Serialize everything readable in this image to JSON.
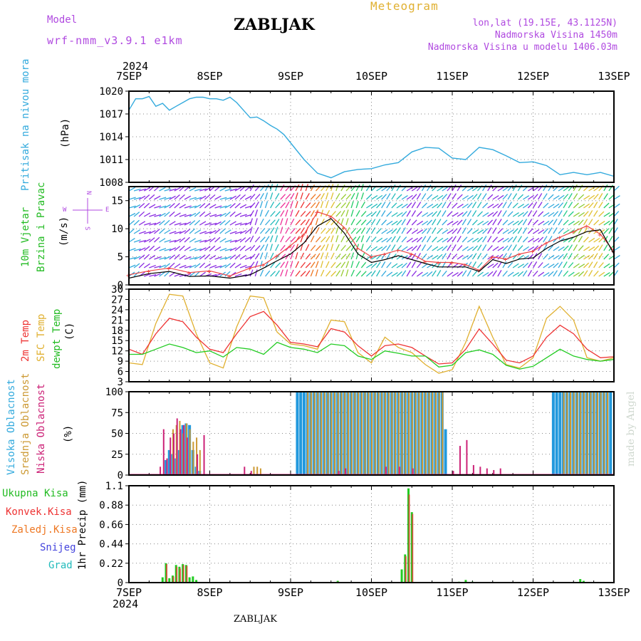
{
  "header": {
    "model_label": "Model",
    "model_run": "wrf-nmm_v3.9.1  e1km",
    "station": "ZABLJAK",
    "product": "Meteogram",
    "coords": "lon,lat (19.15E, 43.1125N)",
    "elevation": "Nadmorska Visina 1450m",
    "model_elevation": "Nadmorska Visina u modelu 1406.03m",
    "credit": "made by Angel",
    "footer_station": "ZABLJAK"
  },
  "time_axis": {
    "year": "2024",
    "ticks": [
      "7SEP",
      "8SEP",
      "9SEP",
      "10SEP",
      "11SEP",
      "12SEP",
      "13SEP"
    ]
  },
  "panels": {
    "pressure": {
      "labels": [
        "Pritisak na nivou mora"
      ],
      "unit": "(hPa)"
    },
    "wind": {
      "labels": [
        "10m Vjetar",
        "Brzina i Pravac"
      ],
      "unit": "(m/s)",
      "compass": {
        "north": "N",
        "south": "S",
        "east": "E",
        "west": "W"
      }
    },
    "temp": {
      "labels": [
        "2m Temp",
        "SFC Temp",
        "dewpt Temp"
      ],
      "unit": "(C)"
    },
    "cloud": {
      "labels": [
        "Visoka Oblacnost",
        "Srednja Oblacnost",
        "Niska Oblacnost"
      ],
      "unit": "(%)"
    },
    "precip": {
      "legend": [
        "Ukupna Kisa",
        "Konvek.Kisa",
        "Zaledj.Kisa",
        "Snijeg",
        "Grad"
      ],
      "unit": "1hr Precip (mm)"
    }
  },
  "colors": {
    "pressure": "#33aadd",
    "temp2m": "#ee3333",
    "sfc": "#e0b030",
    "dewpt": "#22cc22",
    "cloud_high": "#2299dd",
    "cloud_mid": "#cc9933",
    "cloud_low": "#cc2277",
    "total": "#22cc22",
    "conv": "#ee3333",
    "frz": "#ee7722",
    "snow": "#4444dd",
    "hail": "#22bbbb",
    "wind_line": "#000000",
    "gust": "#ee4444"
  },
  "chart_data": [
    {
      "type": "line",
      "name": "pressure",
      "x_unit": "hours from 7SEP 00",
      "ylim": [
        1008,
        1020
      ],
      "yticks": [
        1008,
        1011,
        1014,
        1017,
        1020
      ],
      "grid": true,
      "series": [
        {
          "name": "Pritisak na nivou mora",
          "x": [
            0,
            2,
            4,
            6,
            8,
            10,
            12,
            14,
            16,
            18,
            20,
            22,
            24,
            26,
            28,
            30,
            32,
            34,
            36,
            38,
            40,
            42,
            44,
            46,
            48,
            52,
            56,
            60,
            64,
            68,
            72,
            76,
            80,
            84,
            88,
            92,
            96,
            100,
            104,
            108,
            112,
            116,
            120,
            124,
            128,
            132,
            136,
            140,
            144
          ],
          "y": [
            1017.5,
            1019,
            1019,
            1019.3,
            1018,
            1018.4,
            1017.5,
            1018,
            1018.5,
            1019,
            1019.2,
            1019.2,
            1019,
            1019,
            1018.8,
            1019.2,
            1018.5,
            1017.5,
            1016.5,
            1016.6,
            1016.1,
            1015.5,
            1015,
            1014.3,
            1013.2,
            1011,
            1009.2,
            1008.6,
            1009.4,
            1009.7,
            1009.8,
            1010.3,
            1010.6,
            1012,
            1012.6,
            1012.5,
            1011.2,
            1011,
            1012.6,
            1012.3,
            1011.5,
            1010.6,
            1010.7,
            1010.2,
            1009,
            1009.3,
            1009,
            1009.3,
            1008.8
          ]
        }
      ]
    },
    {
      "type": "line",
      "name": "wind",
      "ylim": [
        0,
        17.5
      ],
      "yticks": [
        0,
        5,
        10,
        15
      ],
      "grid": true,
      "series": [
        {
          "name": "speed",
          "x": [
            0,
            6,
            12,
            18,
            24,
            30,
            36,
            40,
            44,
            48,
            52,
            56,
            60,
            64,
            68,
            72,
            76,
            80,
            84,
            88,
            92,
            96,
            100,
            104,
            108,
            112,
            116,
            120,
            124,
            128,
            132,
            136,
            140,
            144
          ],
          "y": [
            1.2,
            2.0,
            2.4,
            1.5,
            1.6,
            1.2,
            1.8,
            3,
            4.3,
            5.5,
            7.5,
            10.5,
            11.8,
            9.2,
            5.5,
            4,
            4.5,
            5.2,
            4.5,
            3.8,
            3.2,
            3.2,
            3.2,
            2.4,
            4.5,
            3.8,
            4.6,
            4.8,
            6.5,
            7.8,
            8.5,
            9.5,
            9.8,
            5.5
          ]
        },
        {
          "name": "gust",
          "x": [
            0,
            6,
            12,
            18,
            24,
            30,
            36,
            40,
            44,
            48,
            52,
            56,
            60,
            64,
            68,
            72,
            76,
            80,
            84,
            88,
            92,
            96,
            100,
            104,
            108,
            112,
            116,
            120,
            124,
            128,
            132,
            136,
            140,
            144
          ],
          "y": [
            1.8,
            2.5,
            3.0,
            2.2,
            2.5,
            1.6,
            3.0,
            3.6,
            5.2,
            7.0,
            9.0,
            13.0,
            12.2,
            10.2,
            6.5,
            5.0,
            5.5,
            6.2,
            5.5,
            4.2,
            4.0,
            4.0,
            3.6,
            2.6,
            5.0,
            4.6,
            5.5,
            6.0,
            7.5,
            8.5,
            9.5,
            10.5,
            9.0,
            6.0
          ]
        }
      ]
    },
    {
      "type": "line",
      "name": "temperature",
      "ylim": [
        3,
        30
      ],
      "yticks": [
        3,
        6,
        9,
        12,
        15,
        18,
        21,
        24,
        27,
        30
      ],
      "grid": true,
      "series": [
        {
          "name": "2m Temp",
          "x": [
            0,
            4,
            8,
            12,
            16,
            20,
            24,
            28,
            32,
            36,
            40,
            44,
            48,
            52,
            56,
            60,
            64,
            68,
            72,
            76,
            80,
            84,
            88,
            92,
            96,
            100,
            104,
            108,
            112,
            116,
            120,
            124,
            128,
            132,
            136,
            140,
            144
          ],
          "y": [
            12.5,
            11,
            17,
            21.5,
            20.5,
            16,
            12.5,
            11.5,
            17,
            22,
            23.5,
            19.5,
            14.5,
            14,
            13.2,
            18.5,
            17.5,
            13.5,
            10.5,
            13.5,
            14,
            13,
            10.5,
            8.2,
            8.5,
            12.5,
            18.4,
            14,
            9.3,
            8.5,
            10.5,
            16,
            19.5,
            17,
            12.5,
            10,
            10.3
          ]
        },
        {
          "name": "SFC Temp",
          "x": [
            0,
            4,
            8,
            12,
            16,
            20,
            24,
            28,
            32,
            36,
            40,
            44,
            48,
            52,
            56,
            60,
            64,
            68,
            72,
            76,
            80,
            84,
            88,
            92,
            96,
            100,
            104,
            108,
            112,
            116,
            120,
            124,
            128,
            132,
            136,
            140,
            144
          ],
          "y": [
            8.5,
            8,
            20,
            28.5,
            28,
            17,
            8.5,
            7,
            19,
            28,
            27.5,
            17.5,
            14,
            13.5,
            12.5,
            21,
            20.5,
            11.5,
            8.5,
            16,
            13,
            11.5,
            8,
            5.5,
            6.5,
            14.5,
            25,
            16,
            8,
            7,
            10,
            21.5,
            25,
            21,
            10,
            9,
            10
          ]
        },
        {
          "name": "dewpt Temp",
          "x": [
            0,
            4,
            8,
            12,
            16,
            20,
            24,
            28,
            32,
            36,
            40,
            44,
            48,
            52,
            56,
            60,
            64,
            68,
            72,
            76,
            80,
            84,
            88,
            92,
            96,
            100,
            104,
            108,
            112,
            116,
            120,
            124,
            128,
            132,
            136,
            140,
            144
          ],
          "y": [
            11,
            11,
            12.5,
            14,
            13,
            11.5,
            12,
            10.2,
            13,
            12.5,
            11,
            14.5,
            13,
            12.5,
            11.5,
            14,
            13.5,
            10.5,
            9.5,
            12,
            11.3,
            10.5,
            10.5,
            7.3,
            7.8,
            11.5,
            12.3,
            11,
            7.8,
            6.7,
            7.5,
            10,
            12.5,
            10.5,
            9.5,
            9,
            9.5
          ]
        }
      ]
    },
    {
      "type": "bar",
      "name": "cloud",
      "ylim": [
        0,
        100
      ],
      "yticks": [
        0,
        25,
        50,
        75,
        100
      ],
      "grid": true,
      "series": [
        {
          "name": "Visoka Oblacnost",
          "x": [
            11,
            12,
            13,
            14,
            15,
            16,
            17,
            18,
            19,
            20,
            21,
            50,
            51,
            52,
            53,
            54,
            55,
            56,
            57,
            58,
            59,
            60,
            61,
            62,
            63,
            64,
            65,
            66,
            67,
            68,
            69,
            70,
            71,
            72,
            73,
            74,
            75,
            76,
            77,
            78,
            79,
            80,
            81,
            82,
            83,
            84,
            85,
            86,
            87,
            88,
            89,
            90,
            91,
            92,
            93,
            94,
            126,
            127,
            128,
            129,
            130,
            131,
            132,
            133,
            134,
            135,
            136,
            137,
            138,
            139,
            140,
            141,
            142,
            143
          ],
          "y": [
            18,
            30,
            25,
            20,
            30,
            60,
            62,
            60,
            30,
            10,
            5,
            100,
            100,
            100,
            100,
            100,
            100,
            100,
            100,
            100,
            100,
            100,
            100,
            100,
            100,
            100,
            100,
            100,
            100,
            100,
            100,
            100,
            100,
            100,
            100,
            100,
            100,
            100,
            100,
            100,
            100,
            100,
            100,
            100,
            100,
            100,
            100,
            100,
            100,
            100,
            100,
            100,
            100,
            100,
            100,
            55,
            100,
            100,
            100,
            100,
            100,
            100,
            100,
            100,
            100,
            100,
            100,
            100,
            100,
            100,
            100,
            100,
            100,
            100
          ]
        },
        {
          "name": "Srednja Oblacnost",
          "x": [
            13,
            14,
            15,
            16,
            17,
            18,
            19,
            20,
            21,
            37,
            38,
            39,
            53,
            54,
            55,
            56,
            57,
            58,
            59,
            60,
            61,
            62,
            63,
            64,
            65,
            66,
            67,
            68,
            69,
            70,
            71,
            72,
            73,
            74,
            75,
            76,
            77,
            78,
            79,
            80,
            81,
            82,
            83,
            84,
            85,
            86,
            87,
            88,
            89,
            90,
            91,
            92,
            93,
            129,
            130,
            131,
            132,
            133,
            134,
            135,
            136,
            137,
            138,
            139,
            140,
            141,
            142
          ],
          "y": [
            55,
            60,
            65,
            50,
            62,
            55,
            40,
            45,
            30,
            10,
            10,
            8,
            100,
            100,
            100,
            100,
            100,
            100,
            100,
            100,
            100,
            100,
            100,
            100,
            100,
            100,
            100,
            100,
            100,
            100,
            100,
            100,
            100,
            100,
            100,
            100,
            100,
            100,
            100,
            100,
            100,
            100,
            100,
            100,
            100,
            100,
            100,
            100,
            100,
            100,
            100,
            100,
            100,
            100,
            100,
            100,
            100,
            100,
            100,
            100,
            100,
            100,
            100,
            100,
            100,
            100,
            100
          ]
        },
        {
          "name": "Niska Oblacnost",
          "x": [
            9,
            10,
            11,
            12,
            13,
            14,
            15,
            16,
            17,
            20,
            22,
            34,
            36,
            62,
            64,
            76,
            80,
            84,
            96,
            98,
            100,
            102,
            104,
            106,
            108,
            110
          ],
          "y": [
            10,
            55,
            20,
            45,
            50,
            68,
            55,
            60,
            45,
            25,
            48,
            10,
            5,
            5,
            8,
            10,
            10,
            8,
            5,
            35,
            42,
            12,
            10,
            8,
            6,
            8
          ]
        }
      ]
    },
    {
      "type": "bar",
      "name": "precip",
      "ylim": [
        0,
        1.1
      ],
      "yticks": [
        0,
        0.22,
        0.44,
        0.66,
        0.88,
        1.1
      ],
      "grid": true,
      "series": [
        {
          "name": "Ukupna Kisa",
          "x": [
            10,
            11,
            12,
            13,
            14,
            15,
            16,
            17,
            18,
            19,
            20,
            62,
            81,
            82,
            83,
            84,
            98,
            100,
            102,
            134,
            135
          ],
          "y": [
            0.06,
            0.22,
            0.05,
            0.08,
            0.2,
            0.18,
            0.21,
            0.2,
            0.06,
            0.07,
            0.03,
            0.02,
            0.15,
            0.32,
            1.07,
            0.8,
            0.01,
            0.03,
            0.01,
            0.04,
            0.02
          ]
        },
        {
          "name": "Konvek.Kisa",
          "x": [
            11,
            13,
            14,
            15,
            16,
            17,
            62,
            82,
            83,
            84
          ],
          "y": [
            0.21,
            0.07,
            0.18,
            0.16,
            0.2,
            0.19,
            0.01,
            0.3,
            1.0,
            0.78
          ]
        }
      ]
    }
  ]
}
